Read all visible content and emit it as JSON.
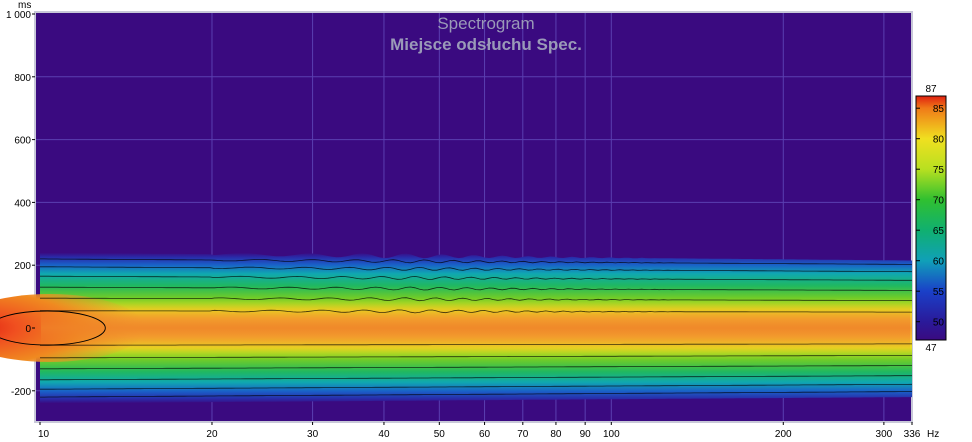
{
  "chart_data": {
    "type": "heatmap",
    "title": "Spectrogram",
    "subtitle": "Miejsce odsłuchu Spec.",
    "x_unit": "Hz",
    "y_unit": "ms",
    "x_scale": "log",
    "xlim": [
      10,
      336
    ],
    "ylim": [
      -240,
      1000
    ],
    "x_ticks": [
      10,
      20,
      30,
      40,
      50,
      60,
      70,
      80,
      90,
      100,
      200,
      300,
      336
    ],
    "x_tick_labels": [
      "10",
      "20",
      "30",
      "40",
      "50",
      "60",
      "70",
      "80",
      "90",
      "100",
      "200",
      "300",
      "336"
    ],
    "y_ticks": [
      1000,
      800,
      600,
      400,
      200,
      0,
      -200
    ],
    "y_tick_labels": [
      "1 000",
      "800",
      "600",
      "400",
      "200",
      "0",
      "-200"
    ],
    "grid": true,
    "colorbar": {
      "min": 47,
      "max": 87,
      "ticks": [
        85,
        80,
        75,
        70,
        65,
        60,
        55,
        50
      ],
      "min_label": "47",
      "max_label": "87",
      "placement": "right"
    },
    "contour_levels_db": [
      50,
      55,
      60,
      65,
      70,
      75,
      80,
      85
    ],
    "band": {
      "description_free": true,
      "peak_db_at_low_freq": 87,
      "peak_db_high_freq": 82,
      "half_width_ms_at_10hz": 240,
      "half_width_ms_at_336hz": 220
    },
    "colors": {
      "background": "#3a0a80",
      "grid": "#5a3fb0",
      "title": "#9a9ab8",
      "contour": "#000000"
    }
  }
}
